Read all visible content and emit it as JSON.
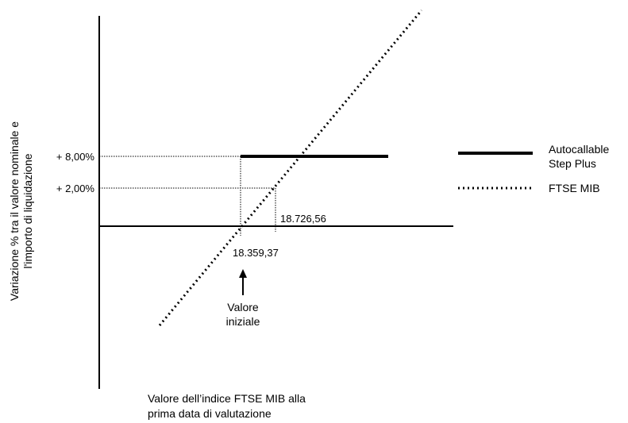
{
  "chart_data": {
    "type": "line",
    "ylabel": [
      "Variazione % tra il valore nominale e",
      "l'importo di liquidazione"
    ],
    "xlabel": [
      "Valore dell’indice FTSE MIB alla",
      "prima data di valutazione"
    ],
    "y_ticks": [
      "+ 8,00%",
      "+ 2,00%"
    ],
    "x_markers": [
      "18.359,37",
      "18.726,56"
    ],
    "annotation": [
      "Valore",
      "iniziale"
    ],
    "series": [
      {
        "name": "Autocallable Step Plus",
        "style": "solid",
        "color": "#000000"
      },
      {
        "name": "FTSE MIB",
        "style": "dotted",
        "color": "#000000"
      }
    ]
  }
}
